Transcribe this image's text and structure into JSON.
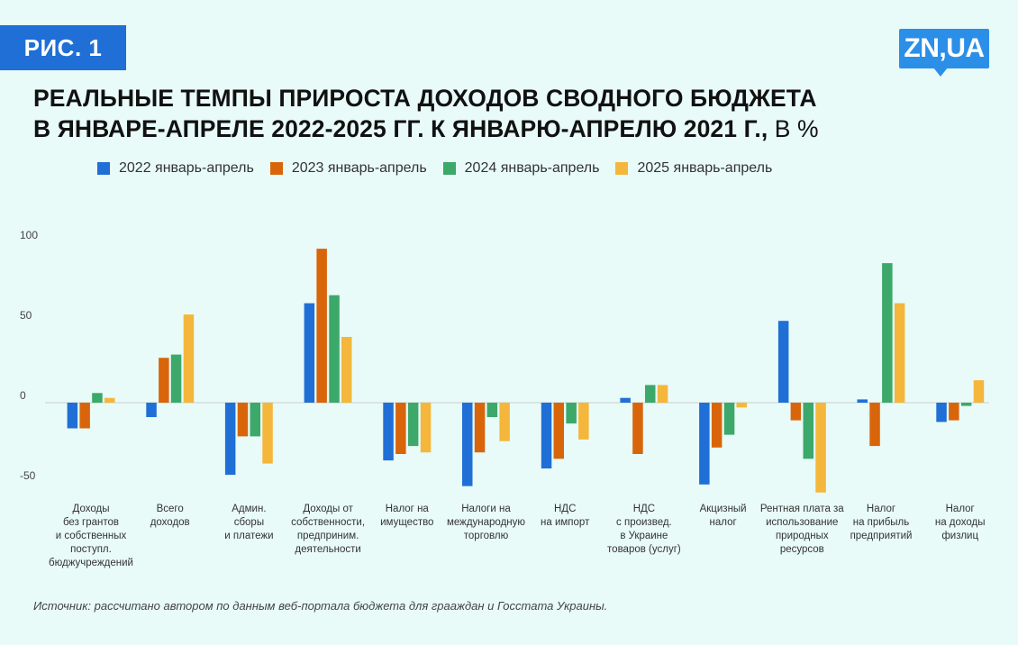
{
  "badge": "РИС. 1",
  "logo": "ZN,UA",
  "title": {
    "line1": "РЕАЛЬНЫЕ ТЕМПЫ ПРИРОСТА ДОХОДОВ СВОДНОГО БЮДЖЕТА",
    "line2": "В ЯНВАРЕ-АПРЕЛЕ 2022-2025 ГГ. К ЯНВАРЮ-АПРЕЛЮ 2021 Г.,",
    "unit": " В %"
  },
  "source": "Источник: рассчитано автором по данным веб-портала бюджета для грааждан и Госстата Украины.",
  "chart_data": {
    "type": "bar",
    "title": "РЕАЛЬНЫЕ ТЕМПЫ ПРИРОСТА ДОХОДОВ СВОДНОГО БЮДЖЕТА В ЯНВАРЕ-АПРЕЛЕ 2022-2025 ГГ. К ЯНВАРЮ-АПРЕЛЮ 2021 Г., В %",
    "ylim": [
      -60,
      100
    ],
    "yticks": [
      100,
      50,
      0,
      -50
    ],
    "grid": false,
    "legend_position": "top",
    "categories": [
      [
        "Доходы",
        "без грантов",
        "и собственных",
        "поступл.",
        "бюджучреждений"
      ],
      [
        "Всего",
        "доходов"
      ],
      [
        "Админ.",
        "сборы",
        "и платежи"
      ],
      [
        "Доходы от",
        "собственности,",
        "предприним.",
        "деятельности"
      ],
      [
        "Налог на",
        "имущество"
      ],
      [
        "Налоги на",
        "международную",
        "торговлю"
      ],
      [
        "НДС",
        "на импорт"
      ],
      [
        "НДС",
        "с произвед.",
        "в Украине",
        "товаров (услуг)"
      ],
      [
        "Акцизный",
        "налог"
      ],
      [
        "Рентная плата за",
        "использование",
        "природных",
        "ресурсов"
      ],
      [
        "Налог",
        "на прибыль",
        "предприятий"
      ],
      [
        "Налог",
        "на доходы",
        "физлиц"
      ]
    ],
    "series": [
      {
        "name": "2022 январь-апрель",
        "color": "#1f6fd6",
        "values": [
          -16,
          -9,
          -45,
          62,
          -36,
          -52,
          -41,
          3,
          -51,
          51,
          2,
          -12
        ]
      },
      {
        "name": "2023 январь-апрель",
        "color": "#d9650b",
        "values": [
          -16,
          28,
          -21,
          96,
          -32,
          -31,
          -35,
          -32,
          -28,
          -11,
          -27,
          -11
        ]
      },
      {
        "name": "2024 январь-апрель",
        "color": "#3ca86a",
        "values": [
          6,
          30,
          -21,
          67,
          -27,
          -9,
          -13,
          11,
          -20,
          -35,
          87,
          -2
        ]
      },
      {
        "name": "2025 январь-апрель",
        "color": "#f4b73c",
        "values": [
          3,
          55,
          -38,
          41,
          -31,
          -24,
          -23,
          11,
          -3,
          -56,
          62,
          14
        ]
      }
    ]
  }
}
